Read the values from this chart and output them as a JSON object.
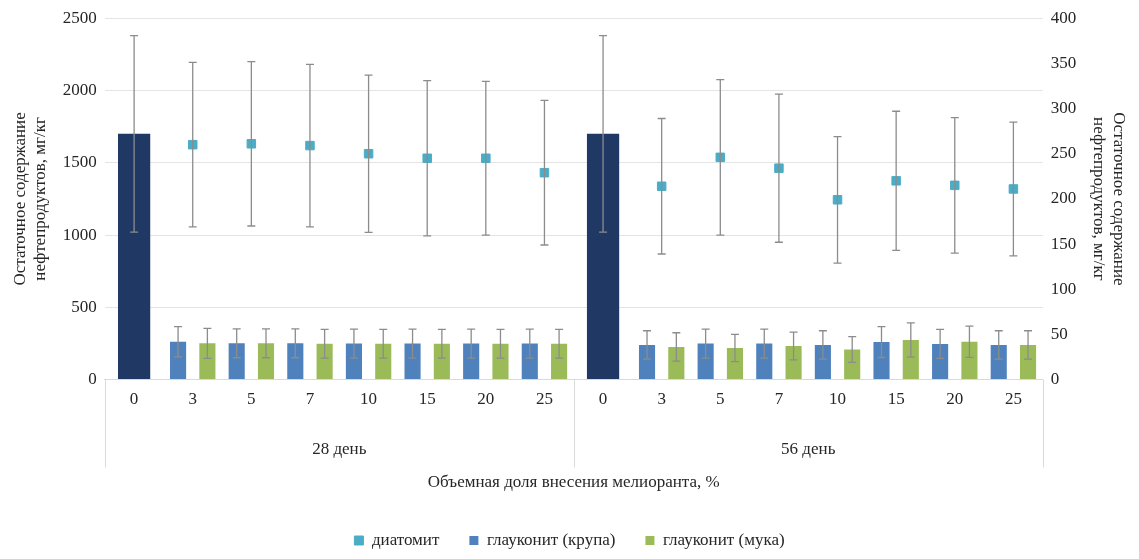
{
  "chart_data": {
    "type": "bar",
    "xlabel": "Объемная доля внесения мелиоранта, %",
    "ylabel": "Остаточное содержание нефтепродуктов, мг/кг",
    "y2label": "Остаточное содержание нефтепродуктов, мг/кг",
    "categories": [
      "0",
      "3",
      "5",
      "7",
      "10",
      "15",
      "20",
      "25",
      "0",
      "3",
      "5",
      "7",
      "10",
      "15",
      "20",
      "25"
    ],
    "annotations": [
      "28 день",
      "56 день"
    ],
    "series": [
      {
        "color": "#1f3864",
        "values": [
          1700,
          null,
          null,
          null,
          null,
          null,
          null,
          null,
          1700,
          null,
          null,
          null,
          null,
          null,
          null,
          null
        ],
        "errors": [
          680,
          null,
          null,
          null,
          null,
          null,
          null,
          null,
          680,
          null,
          null,
          null,
          null,
          null,
          null,
          null
        ]
      },
      {
        "name": "глауконит (крупа)",
        "color": "#4f81bd",
        "values": [
          null,
          262,
          251,
          251,
          249,
          249,
          249,
          249,
          null,
          240,
          249,
          249,
          240,
          260,
          247,
          240
        ],
        "errors": [
          null,
          105,
          100,
          100,
          100,
          100,
          100,
          100,
          null,
          98,
          100,
          100,
          98,
          107,
          100,
          98
        ]
      },
      {
        "name": "глауконит (мука)",
        "color": "#9bbb59",
        "values": [
          null,
          251,
          251,
          248,
          248,
          248,
          248,
          248,
          null,
          226,
          219,
          233,
          208,
          274,
          262,
          240
        ],
        "errors": [
          null,
          104,
          100,
          100,
          100,
          100,
          100,
          100,
          null,
          98,
          94,
          96,
          89,
          118,
          108,
          98
        ]
      },
      {
        "name": "диатомит",
        "type": "scatter",
        "axis": "y2",
        "color": "#4bacc6",
        "values": [
          null,
          260,
          261,
          259,
          250,
          245,
          245,
          229,
          null,
          214,
          246,
          234,
          199,
          220,
          215,
          211
        ],
        "errors": [
          null,
          91,
          91,
          90,
          87,
          86,
          85,
          80,
          null,
          75,
          86,
          82,
          70,
          77,
          75,
          74
        ]
      }
    ],
    "ylim": [
      0,
      2500
    ],
    "yticks": [
      0,
      500,
      1000,
      1500,
      2000,
      2500
    ],
    "y2lim": [
      0,
      400
    ],
    "y2ticks": [
      0,
      50,
      100,
      150,
      200,
      250,
      300,
      350,
      400
    ],
    "grid": "y",
    "legend": "bottom",
    "marker": "square"
  }
}
